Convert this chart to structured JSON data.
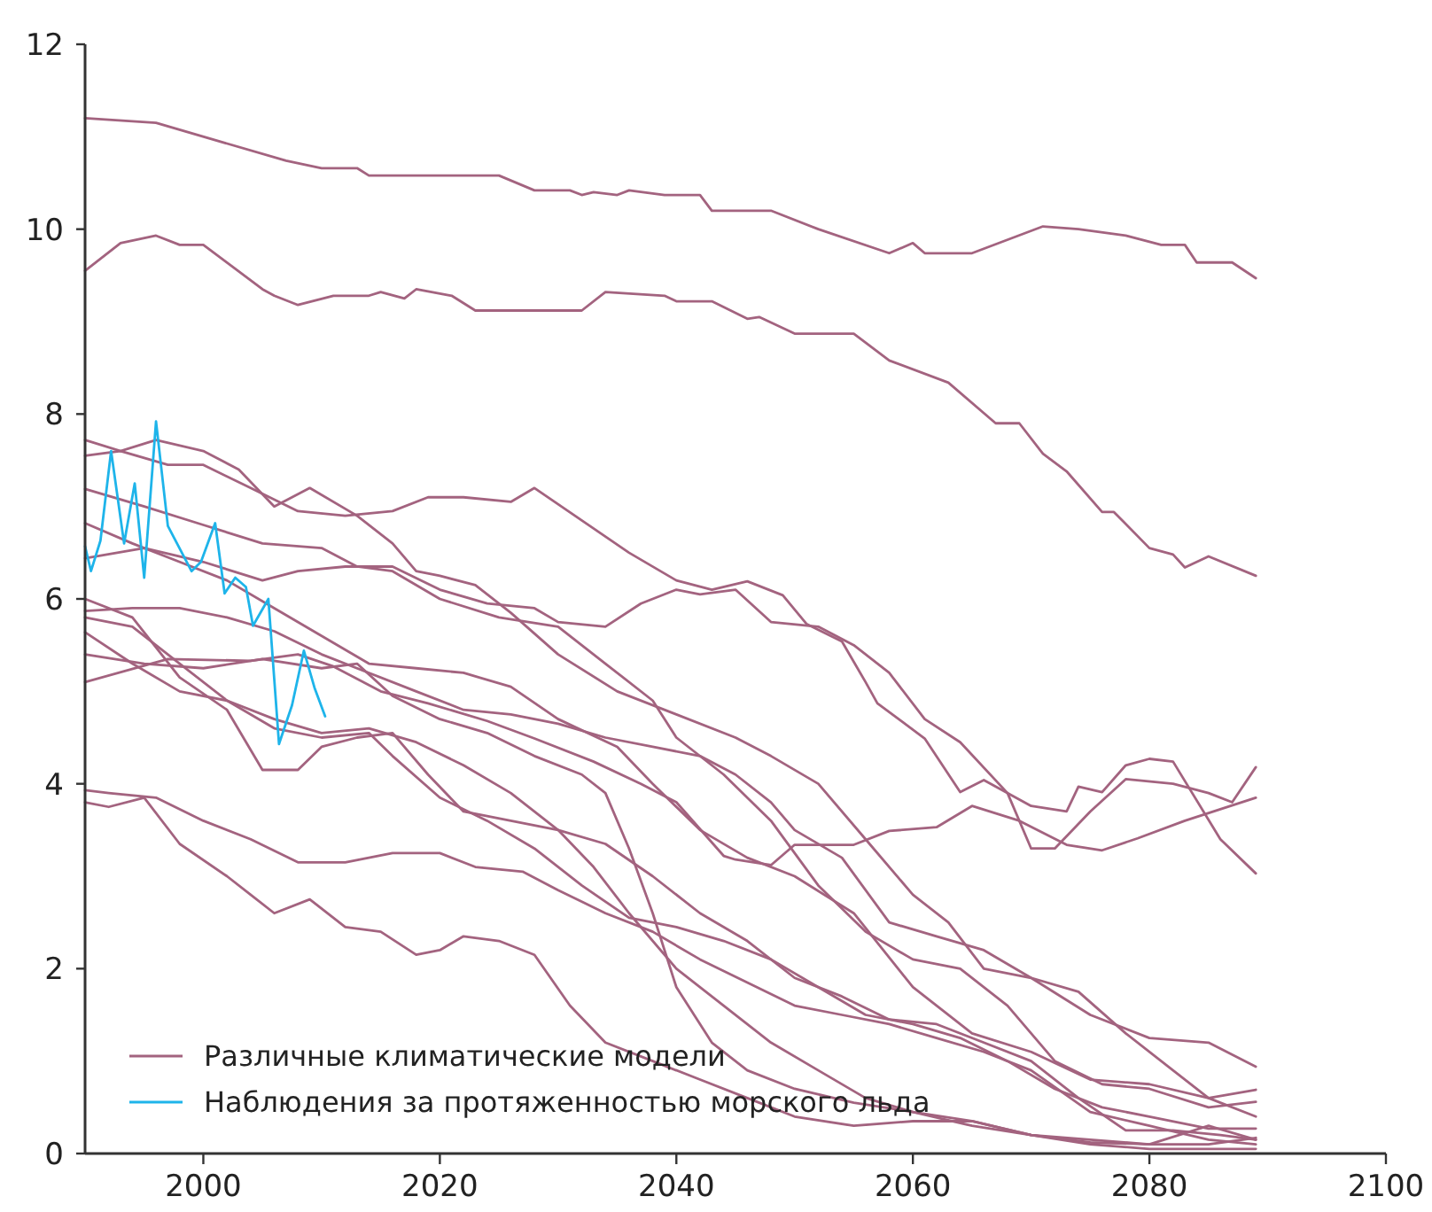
{
  "chart_data": {
    "type": "line",
    "xlim": [
      1990,
      2100
    ],
    "xticks": [
      2000,
      2020,
      2040,
      2060,
      2080,
      2100
    ],
    "ylim": [
      0,
      12
    ],
    "yticks": [
      0,
      2,
      4,
      6,
      8,
      10,
      12
    ],
    "grid": false,
    "legend": "bottom left",
    "line_style": "solid",
    "marker": "none",
    "series": [
      {
        "name": "Различные климатические модели",
        "color": "#a3637f",
        "x": [
          1990,
          1996,
          2007,
          2010,
          2013,
          2014,
          2025,
          2028,
          2031,
          2032,
          2033,
          2035,
          2036,
          2039,
          2042,
          2043,
          2048,
          2052,
          2058,
          2060,
          2061,
          2065,
          2071,
          2074,
          2078,
          2081,
          2083,
          2084,
          2087,
          2089
        ],
        "values": [
          11.2,
          11.15,
          10.74,
          10.66,
          10.66,
          10.58,
          10.58,
          10.42,
          10.42,
          10.37,
          10.4,
          10.37,
          10.42,
          10.37,
          10.37,
          10.2,
          10.2,
          10.0,
          9.74,
          9.85,
          9.74,
          9.74,
          10.03,
          10.0,
          9.93,
          9.83,
          9.83,
          9.64,
          9.64,
          9.47
        ]
      },
      {
        "color": "#a3637f",
        "x": [
          1990,
          1993,
          1996,
          1998,
          2000,
          2005,
          2006,
          2008,
          2011,
          2014,
          2015,
          2017,
          2018,
          2021,
          2023,
          2032,
          2034,
          2039,
          2040,
          2043,
          2046,
          2047,
          2050,
          2055,
          2058,
          2063,
          2067,
          2069,
          2071,
          2073,
          2076,
          2077,
          2080,
          2082,
          2083,
          2085,
          2089
        ],
        "values": [
          9.55,
          9.85,
          9.93,
          9.83,
          9.83,
          9.35,
          9.28,
          9.18,
          9.28,
          9.28,
          9.32,
          9.25,
          9.35,
          9.28,
          9.12,
          9.12,
          9.32,
          9.28,
          9.22,
          9.22,
          9.03,
          9.05,
          8.87,
          8.87,
          8.58,
          8.34,
          7.9,
          7.9,
          7.57,
          7.38,
          6.94,
          6.94,
          6.55,
          6.48,
          6.34,
          6.46,
          6.25
        ]
      },
      {
        "color": "#a3637f",
        "x": [
          1990,
          1993,
          1996,
          2000,
          2003,
          2006,
          2009,
          2013,
          2016,
          2018,
          2020,
          2023,
          2026,
          2030,
          2035,
          2040,
          2045,
          2048,
          2052,
          2056,
          2060,
          2063,
          2066,
          2070,
          2075,
          2080,
          2085,
          2089
        ],
        "values": [
          7.72,
          7.6,
          7.72,
          7.6,
          7.4,
          7.0,
          7.2,
          6.9,
          6.6,
          6.3,
          6.25,
          6.15,
          5.85,
          5.4,
          5.0,
          4.75,
          4.5,
          4.3,
          4.0,
          3.4,
          2.8,
          2.5,
          2.0,
          1.9,
          1.5,
          1.25,
          1.2,
          0.94
        ]
      },
      {
        "color": "#a3637f",
        "x": [
          1990,
          1993,
          1997,
          2000,
          2004,
          2008,
          2012,
          2016,
          2019,
          2022,
          2026,
          2028,
          2032,
          2036,
          2040,
          2043,
          2046,
          2049,
          2051,
          2054,
          2056,
          2057,
          2059,
          2061,
          2064,
          2066,
          2070,
          2073,
          2074,
          2076,
          2078,
          2080,
          2082,
          2086,
          2089
        ],
        "values": [
          7.55,
          7.6,
          7.45,
          7.45,
          7.2,
          6.95,
          6.9,
          6.95,
          7.1,
          7.1,
          7.05,
          7.2,
          6.85,
          6.5,
          6.2,
          6.1,
          6.19,
          6.04,
          5.73,
          5.54,
          5.1,
          4.87,
          4.68,
          4.49,
          3.91,
          4.04,
          3.76,
          3.7,
          3.97,
          3.91,
          4.2,
          4.27,
          4.24,
          3.4,
          3.03
        ]
      },
      {
        "color": "#a3637f",
        "x": [
          1990,
          1995,
          2000,
          2005,
          2010,
          2013,
          2016,
          2020,
          2025,
          2030,
          2034,
          2038,
          2040,
          2044,
          2048,
          2052,
          2056,
          2060,
          2064,
          2068,
          2072,
          2076,
          2080,
          2085,
          2089
        ],
        "values": [
          7.19,
          7.0,
          6.8,
          6.6,
          6.55,
          6.35,
          6.3,
          6.0,
          5.8,
          5.7,
          5.3,
          4.9,
          4.5,
          4.1,
          3.6,
          2.9,
          2.4,
          2.1,
          2.0,
          1.6,
          1.0,
          0.75,
          0.7,
          0.5,
          0.56
        ]
      },
      {
        "color": "#a3637f",
        "x": [
          1990,
          1994,
          1998,
          2002,
          2006,
          2010,
          2014,
          2018,
          2022,
          2026,
          2030,
          2035,
          2038,
          2042,
          2046,
          2050,
          2055,
          2060,
          2065,
          2070,
          2075,
          2080,
          2085,
          2089
        ],
        "values": [
          6.82,
          6.6,
          6.4,
          6.2,
          5.9,
          5.6,
          5.3,
          5.25,
          5.2,
          5.05,
          4.7,
          4.4,
          4.0,
          3.5,
          3.2,
          3.0,
          2.6,
          1.8,
          1.3,
          1.1,
          0.8,
          0.75,
          0.6,
          0.69
        ]
      },
      {
        "color": "#a3637f",
        "x": [
          1990,
          1995,
          2000,
          2005,
          2008,
          2012,
          2016,
          2020,
          2024,
          2028,
          2030,
          2034,
          2037,
          2040,
          2042,
          2045,
          2048,
          2052,
          2055,
          2058,
          2061,
          2064,
          2068,
          2070,
          2072,
          2075,
          2078,
          2082,
          2085,
          2087,
          2089
        ],
        "values": [
          6.44,
          6.55,
          6.4,
          6.2,
          6.3,
          6.35,
          6.35,
          6.1,
          5.95,
          5.9,
          5.75,
          5.7,
          5.95,
          6.1,
          6.05,
          6.1,
          5.75,
          5.7,
          5.5,
          5.2,
          4.7,
          4.45,
          3.9,
          3.3,
          3.3,
          3.7,
          4.05,
          4.0,
          3.9,
          3.8,
          4.18
        ]
      },
      {
        "color": "#a3637f",
        "x": [
          1990,
          1994,
          1998,
          2002,
          2005,
          2008,
          2010,
          2013,
          2016,
          2019,
          2022,
          2026,
          2030,
          2034,
          2038,
          2042,
          2046,
          2050,
          2054,
          2058,
          2062,
          2066,
          2070,
          2074,
          2078,
          2082,
          2086,
          2089
        ],
        "values": [
          6.0,
          5.8,
          5.15,
          4.8,
          4.15,
          4.15,
          4.4,
          4.5,
          4.55,
          4.1,
          3.7,
          3.6,
          3.5,
          3.35,
          3.0,
          2.6,
          2.3,
          1.9,
          1.7,
          1.45,
          1.4,
          1.2,
          1.0,
          0.6,
          0.25,
          0.25,
          0.2,
          0.15
        ]
      },
      {
        "color": "#a3637f",
        "x": [
          1990,
          1994,
          1998,
          2002,
          2006,
          2010,
          2014,
          2018,
          2022,
          2026,
          2030,
          2034,
          2038,
          2042,
          2045,
          2048,
          2050,
          2054,
          2058,
          2062,
          2066,
          2070,
          2074,
          2078,
          2082,
          2085,
          2089
        ],
        "values": [
          5.87,
          5.9,
          5.9,
          5.8,
          5.65,
          5.4,
          5.2,
          5.0,
          4.8,
          4.75,
          4.65,
          4.5,
          4.4,
          4.3,
          4.1,
          3.8,
          3.5,
          3.2,
          2.5,
          2.35,
          2.2,
          1.9,
          1.75,
          1.3,
          0.9,
          0.6,
          0.4
        ]
      },
      {
        "color": "#a3637f",
        "x": [
          1990,
          1994,
          1998,
          2002,
          2006,
          2010,
          2014,
          2016,
          2020,
          2024,
          2028,
          2032,
          2036,
          2040,
          2044,
          2048,
          2052,
          2056,
          2060,
          2064,
          2068,
          2072,
          2076,
          2080,
          2085,
          2089
        ],
        "values": [
          5.8,
          5.7,
          5.3,
          4.9,
          4.6,
          4.5,
          4.55,
          4.3,
          3.85,
          3.6,
          3.3,
          2.9,
          2.55,
          2.45,
          2.3,
          2.1,
          1.8,
          1.5,
          1.4,
          1.25,
          1.0,
          0.7,
          0.5,
          0.4,
          0.27,
          0.27
        ]
      },
      {
        "color": "#a3637f",
        "x": [
          1990,
          1994,
          1998,
          2002,
          2006,
          2010,
          2014,
          2018,
          2022,
          2026,
          2030,
          2033,
          2036,
          2040,
          2044,
          2048,
          2052,
          2056,
          2060,
          2065,
          2070,
          2075,
          2080,
          2085,
          2089
        ],
        "values": [
          5.64,
          5.3,
          5.0,
          4.9,
          4.7,
          4.55,
          4.6,
          4.45,
          4.2,
          3.9,
          3.5,
          3.1,
          2.6,
          2.0,
          1.6,
          1.2,
          0.9,
          0.6,
          0.45,
          0.35,
          0.2,
          0.12,
          0.1,
          0.1,
          0.17
        ]
      },
      {
        "color": "#a3637f",
        "x": [
          1990,
          1995,
          2000,
          2005,
          2010,
          2013,
          2016,
          2020,
          2024,
          2028,
          2032,
          2034,
          2036,
          2038,
          2040,
          2043,
          2046,
          2050,
          2055,
          2060,
          2065,
          2070,
          2075,
          2080,
          2085,
          2089
        ],
        "values": [
          5.4,
          5.3,
          5.25,
          5.35,
          5.25,
          5.3,
          4.95,
          4.7,
          4.55,
          4.3,
          4.1,
          3.9,
          3.3,
          2.6,
          1.8,
          1.2,
          0.9,
          0.7,
          0.55,
          0.45,
          0.3,
          0.2,
          0.15,
          0.1,
          0.3,
          0.15
        ]
      },
      {
        "color": "#a3637f",
        "x": [
          1990,
          1997,
          2004,
          2008,
          2011,
          2015,
          2019,
          2024,
          2028,
          2033,
          2037,
          2040,
          2044,
          2045,
          2048,
          2050,
          2055,
          2058,
          2062,
          2065,
          2069,
          2073,
          2076,
          2079,
          2083,
          2089
        ],
        "values": [
          5.1,
          5.35,
          5.33,
          5.4,
          5.27,
          5.0,
          4.87,
          4.68,
          4.49,
          4.24,
          4.0,
          3.8,
          3.22,
          3.18,
          3.12,
          3.34,
          3.34,
          3.49,
          3.53,
          3.76,
          3.6,
          3.34,
          3.28,
          3.41,
          3.6,
          3.85
        ]
      },
      {
        "color": "#a3637f",
        "x": [
          1990,
          1992,
          1996,
          2000,
          2004,
          2008,
          2012,
          2016,
          2020,
          2023,
          2027,
          2030,
          2034,
          2038,
          2042,
          2046,
          2050,
          2054,
          2058,
          2062,
          2066,
          2070,
          2075,
          2080,
          2085,
          2089
        ],
        "values": [
          3.93,
          3.9,
          3.85,
          3.6,
          3.4,
          3.15,
          3.15,
          3.25,
          3.25,
          3.1,
          3.05,
          2.85,
          2.6,
          2.4,
          2.1,
          1.85,
          1.6,
          1.5,
          1.4,
          1.25,
          1.1,
          0.9,
          0.45,
          0.3,
          0.15,
          0.1
        ]
      },
      {
        "color": "#a3637f",
        "x": [
          1990,
          1992,
          1995,
          1998,
          2002,
          2004,
          2006,
          2009,
          2012,
          2015,
          2018,
          2020,
          2022,
          2025,
          2028,
          2031,
          2034,
          2038,
          2042,
          2046,
          2050,
          2055,
          2060,
          2065,
          2070,
          2075,
          2080,
          2085,
          2089
        ],
        "values": [
          3.8,
          3.75,
          3.85,
          3.35,
          3.0,
          2.8,
          2.6,
          2.75,
          2.45,
          2.4,
          2.15,
          2.2,
          2.35,
          2.3,
          2.15,
          1.6,
          1.2,
          1.0,
          0.8,
          0.6,
          0.4,
          0.3,
          0.35,
          0.35,
          0.2,
          0.1,
          0.05,
          0.05,
          0.05
        ]
      },
      {
        "name": "Наблюдения за протяженностью морского льда",
        "color": "#1eb4ea",
        "x": [
          1990,
          1990.5,
          1991.3,
          1992.2,
          1993.3,
          1994.2,
          1995,
          1996,
          1997,
          1999,
          1999.8,
          2001,
          2001.8,
          2002.7,
          2003.6,
          2004.2,
          2005.5,
          2006.4,
          2007.5,
          2008.5,
          2009.4,
          2010.3
        ],
        "values": [
          6.57,
          6.3,
          6.63,
          7.6,
          6.6,
          7.25,
          6.23,
          7.92,
          6.79,
          6.3,
          6.4,
          6.82,
          6.06,
          6.23,
          6.13,
          5.71,
          6.0,
          4.43,
          4.85,
          5.44,
          5.04,
          4.73
        ]
      }
    ]
  }
}
